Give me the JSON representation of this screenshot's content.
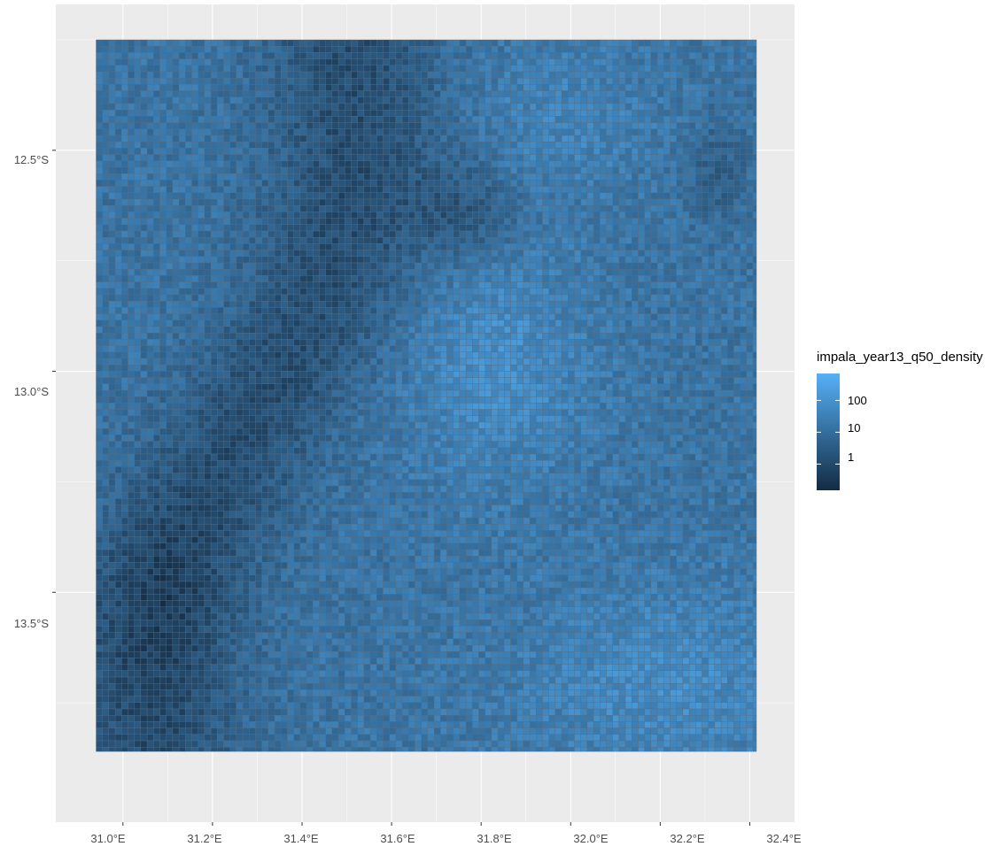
{
  "chart_data": {
    "type": "heatmap",
    "title": "",
    "xlabel": "",
    "ylabel": "",
    "x_ticks": [
      {
        "value": 31.0,
        "label": "31.0°E"
      },
      {
        "value": 31.2,
        "label": "31.2°E"
      },
      {
        "value": 31.4,
        "label": "31.4°E"
      },
      {
        "value": 31.6,
        "label": "31.6°E"
      },
      {
        "value": 31.8,
        "label": "31.8°E"
      },
      {
        "value": 32.0,
        "label": "32.0°E"
      },
      {
        "value": 32.2,
        "label": "32.2°E"
      },
      {
        "value": 32.4,
        "label": "32.4°E"
      }
    ],
    "y_ticks": [
      {
        "value": -12.5,
        "label": "12.5°S"
      },
      {
        "value": -13.0,
        "label": "13.0°S"
      },
      {
        "value": -13.5,
        "label": "13.5°S"
      }
    ],
    "xlim": [
      30.85,
      32.5
    ],
    "ylim": [
      -14.02,
      -12.17
    ],
    "raster_extent": {
      "lon": [
        30.94,
        32.415
      ],
      "lat": [
        -13.86,
        -12.25
      ]
    },
    "grid": true,
    "fill_scale": {
      "name": "impala_year13_q50_density",
      "transform": "log10",
      "breaks": [
        {
          "value": 100,
          "label": "100"
        },
        {
          "value": 10,
          "label": "10"
        },
        {
          "value": 1,
          "label": "1"
        }
      ],
      "limits": [
        0.15,
        700
      ],
      "low_color": "#132B43",
      "high_color": "#56B1F7"
    },
    "legend_position": "right",
    "cell_outline_color": "#5a6e80",
    "panel_background": "#ebebeb",
    "grid_color": "#ffffff"
  }
}
